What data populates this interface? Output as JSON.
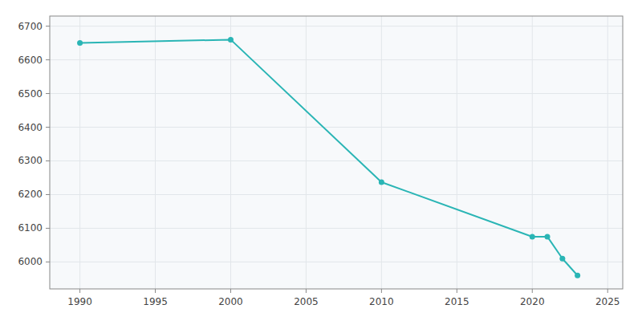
{
  "chart_data": {
    "type": "line",
    "x": [
      1990,
      2000,
      2010,
      2020,
      2021,
      2022,
      2023
    ],
    "values": [
      6650,
      6660,
      6237,
      6075,
      6075,
      6010,
      5960
    ],
    "color": "#2ab5b5",
    "marker": "circle",
    "xlim": [
      1988,
      2026
    ],
    "ylim": [
      5920,
      6730
    ],
    "xticks": [
      1990,
      1995,
      2000,
      2005,
      2010,
      2015,
      2020,
      2025
    ],
    "yticks": [
      6000,
      6100,
      6200,
      6300,
      6400,
      6500,
      6600,
      6700
    ],
    "grid": true
  }
}
